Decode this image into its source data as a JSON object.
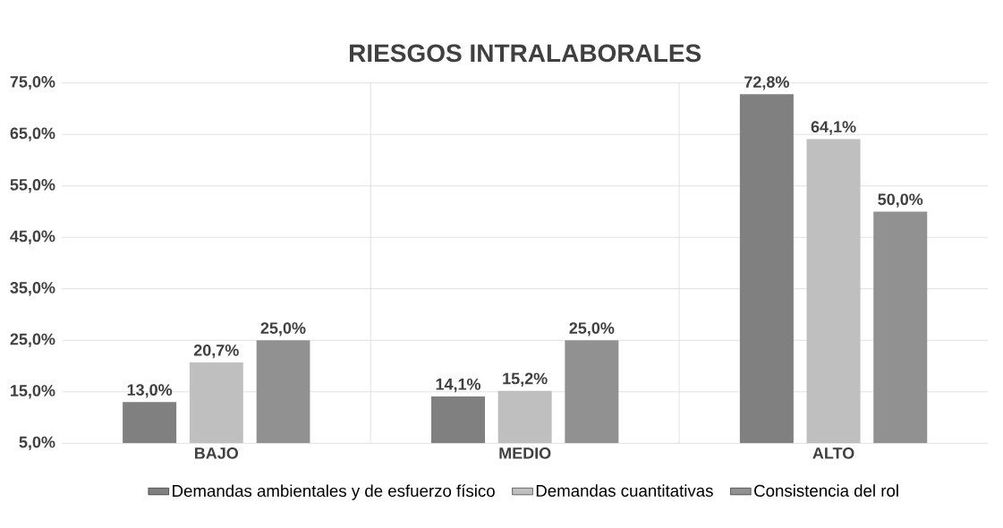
{
  "chart_data": {
    "type": "bar",
    "title": "RIESGOS INTRALABORALES",
    "categories": [
      "BAJO",
      "MEDIO",
      "ALTO"
    ],
    "series": [
      {
        "name": "Demandas ambientales y de esfuerzo físico",
        "color": "#808080",
        "values": [
          13.0,
          14.1,
          72.8
        ],
        "value_labels": [
          "13,0%",
          "14,1%",
          "72,8%"
        ]
      },
      {
        "name": "Demandas cuantitativas",
        "color": "#bfbfbf",
        "values": [
          20.7,
          15.2,
          64.1
        ],
        "value_labels": [
          "20,7%",
          "15,2%",
          "64,1%"
        ]
      },
      {
        "name": "Consistencia del rol",
        "color": "#919191",
        "values": [
          25.0,
          25.0,
          50.0
        ],
        "value_labels": [
          "25,0%",
          "25,0%",
          "50,0%"
        ]
      }
    ],
    "ylim": [
      5,
      75
    ],
    "yticks": [
      {
        "value": 5,
        "label": "5,0%"
      },
      {
        "value": 15,
        "label": "15,0%"
      },
      {
        "value": 25,
        "label": "25,0%"
      },
      {
        "value": 35,
        "label": "35,0%"
      },
      {
        "value": 45,
        "label": "45,0%"
      },
      {
        "value": 55,
        "label": "55,0%"
      },
      {
        "value": 65,
        "label": "65,0%"
      },
      {
        "value": 75,
        "label": "75,0%"
      }
    ],
    "grid": true,
    "legend": "bottom"
  }
}
